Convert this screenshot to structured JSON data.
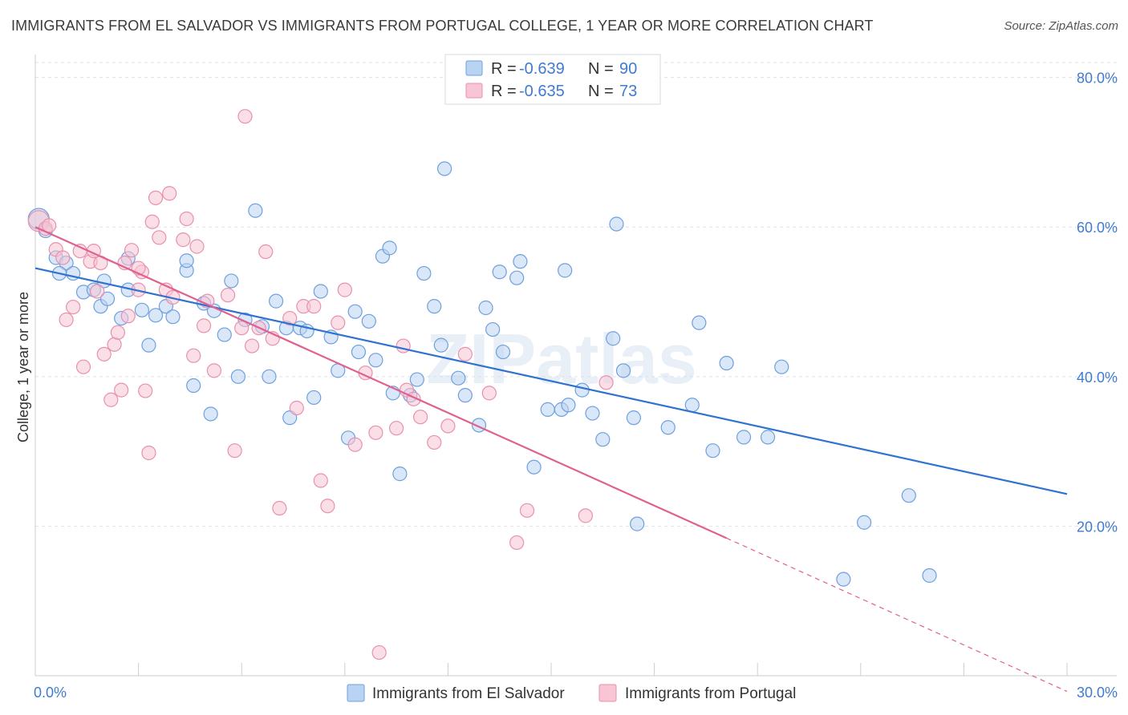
{
  "title": "IMMIGRANTS FROM EL SALVADOR VS IMMIGRANTS FROM PORTUGAL COLLEGE, 1 YEAR OR MORE CORRELATION CHART",
  "source": "Source: ZipAtlas.com",
  "watermark": "ZIPatlas",
  "colors": {
    "blue_fill": "#b9d3f3",
    "blue_stroke": "#6fa0dd",
    "blue_line": "#2f72d0",
    "pink_fill": "#f8c5d4",
    "pink_stroke": "#e890ae",
    "pink_line": "#e0608f",
    "accent_text": "#3f7bd0",
    "grid": "#dde3ea"
  },
  "legend": {
    "r_label": "R =",
    "n_label": "N =",
    "rows": [
      {
        "series": "Immigrants from El Salvador",
        "r": "-0.639",
        "n": "90"
      },
      {
        "series": "Immigrants from Portugal",
        "r": "-0.635",
        "n": "73"
      }
    ]
  },
  "chart_data": {
    "type": "scatter",
    "title": "IMMIGRANTS FROM EL SALVADOR VS IMMIGRANTS FROM PORTUGAL COLLEGE, 1 YEAR OR MORE CORRELATION CHART",
    "xlabel": "",
    "ylabel": "College, 1 year or more",
    "xlim": [
      0,
      30
    ],
    "ylim": [
      0,
      82
    ],
    "x_tick_labels": [
      "0.0%",
      "30.0%"
    ],
    "y_ticks": [
      20,
      40,
      60,
      80
    ],
    "y_tick_labels": [
      "20.0%",
      "40.0%",
      "60.0%",
      "80.0%"
    ],
    "grid": true,
    "legend_position": "top-center",
    "series": [
      {
        "name": "Immigrants from El Salvador",
        "color": "#b9d3f3",
        "trend": {
          "x0": 0,
          "y0": 54.5,
          "x1": 30,
          "y1": 24.3
        },
        "points": [
          [
            0.1,
            61.1
          ],
          [
            0.3,
            59.5
          ],
          [
            0.6,
            55.9
          ],
          [
            0.9,
            55.2
          ],
          [
            0.7,
            53.8
          ],
          [
            1.1,
            53.8
          ],
          [
            1.4,
            51.3
          ],
          [
            1.7,
            51.6
          ],
          [
            2.0,
            52.8
          ],
          [
            1.9,
            49.4
          ],
          [
            2.1,
            50.4
          ],
          [
            2.5,
            47.8
          ],
          [
            2.7,
            51.6
          ],
          [
            2.7,
            55.8
          ],
          [
            3.1,
            48.9
          ],
          [
            3.3,
            44.2
          ],
          [
            3.5,
            48.2
          ],
          [
            3.8,
            49.4
          ],
          [
            4.0,
            48.0
          ],
          [
            4.4,
            54.2
          ],
          [
            4.4,
            55.5
          ],
          [
            4.6,
            38.8
          ],
          [
            4.9,
            49.8
          ],
          [
            5.1,
            35.0
          ],
          [
            5.2,
            48.8
          ],
          [
            5.5,
            45.6
          ],
          [
            5.7,
            52.8
          ],
          [
            5.9,
            40.0
          ],
          [
            6.1,
            47.6
          ],
          [
            6.4,
            62.2
          ],
          [
            6.6,
            46.7
          ],
          [
            6.8,
            40.0
          ],
          [
            7.0,
            50.1
          ],
          [
            7.3,
            46.5
          ],
          [
            7.4,
            34.5
          ],
          [
            7.7,
            46.5
          ],
          [
            7.9,
            46.1
          ],
          [
            8.1,
            37.2
          ],
          [
            8.3,
            51.4
          ],
          [
            8.6,
            45.3
          ],
          [
            8.8,
            40.8
          ],
          [
            9.1,
            31.8
          ],
          [
            9.3,
            48.7
          ],
          [
            9.4,
            43.3
          ],
          [
            9.7,
            47.4
          ],
          [
            9.9,
            42.2
          ],
          [
            10.1,
            56.1
          ],
          [
            10.3,
            57.2
          ],
          [
            10.4,
            37.8
          ],
          [
            10.6,
            27.0
          ],
          [
            10.9,
            37.5
          ],
          [
            11.1,
            39.6
          ],
          [
            11.3,
            53.8
          ],
          [
            11.6,
            49.4
          ],
          [
            11.8,
            44.2
          ],
          [
            11.9,
            67.8
          ],
          [
            12.3,
            39.8
          ],
          [
            12.5,
            37.5
          ],
          [
            12.9,
            33.5
          ],
          [
            13.1,
            49.2
          ],
          [
            13.3,
            46.3
          ],
          [
            13.5,
            54.0
          ],
          [
            13.6,
            43.3
          ],
          [
            14.0,
            53.2
          ],
          [
            14.1,
            55.4
          ],
          [
            14.5,
            27.9
          ],
          [
            14.9,
            35.6
          ],
          [
            15.3,
            35.6
          ],
          [
            15.5,
            36.2
          ],
          [
            15.4,
            54.2
          ],
          [
            15.9,
            38.2
          ],
          [
            16.2,
            35.1
          ],
          [
            16.5,
            31.6
          ],
          [
            16.8,
            45.1
          ],
          [
            16.9,
            60.4
          ],
          [
            17.1,
            40.8
          ],
          [
            17.4,
            34.5
          ],
          [
            17.5,
            20.3
          ],
          [
            18.4,
            33.2
          ],
          [
            19.1,
            36.2
          ],
          [
            19.3,
            47.2
          ],
          [
            19.7,
            30.1
          ],
          [
            20.1,
            41.8
          ],
          [
            20.6,
            31.9
          ],
          [
            21.3,
            31.9
          ],
          [
            21.7,
            41.3
          ],
          [
            23.5,
            12.9
          ],
          [
            24.1,
            20.5
          ],
          [
            25.4,
            24.1
          ],
          [
            26.0,
            13.4
          ]
        ]
      },
      {
        "name": "Immigrants from Portugal",
        "color": "#f8c5d4",
        "trend": {
          "x0": 0,
          "y0": 60.0,
          "x1": 20.1,
          "y1": 18.4,
          "dashed_to": {
            "x": 30,
            "y": -2.1
          }
        },
        "points": [
          [
            0.1,
            60.8
          ],
          [
            0.3,
            59.8
          ],
          [
            0.4,
            60.2
          ],
          [
            0.6,
            57.0
          ],
          [
            0.8,
            55.9
          ],
          [
            0.9,
            47.6
          ],
          [
            1.1,
            49.3
          ],
          [
            1.3,
            56.8
          ],
          [
            1.4,
            41.3
          ],
          [
            1.6,
            55.4
          ],
          [
            1.7,
            56.8
          ],
          [
            1.8,
            51.4
          ],
          [
            1.9,
            55.2
          ],
          [
            2.0,
            43.0
          ],
          [
            2.2,
            36.9
          ],
          [
            2.3,
            44.3
          ],
          [
            2.4,
            45.9
          ],
          [
            2.6,
            55.2
          ],
          [
            2.7,
            48.1
          ],
          [
            2.8,
            56.9
          ],
          [
            3.0,
            51.6
          ],
          [
            3.1,
            54.0
          ],
          [
            3.2,
            38.1
          ],
          [
            3.3,
            29.8
          ],
          [
            3.4,
            60.7
          ],
          [
            3.5,
            63.9
          ],
          [
            3.6,
            58.6
          ],
          [
            3.8,
            51.6
          ],
          [
            3.9,
            64.5
          ],
          [
            4.0,
            50.6
          ],
          [
            4.3,
            58.3
          ],
          [
            4.4,
            61.1
          ],
          [
            4.6,
            42.8
          ],
          [
            4.7,
            57.4
          ],
          [
            4.9,
            46.8
          ],
          [
            5.2,
            40.8
          ],
          [
            5.6,
            50.9
          ],
          [
            5.8,
            30.1
          ],
          [
            6.0,
            46.5
          ],
          [
            6.1,
            74.8
          ],
          [
            6.3,
            44.1
          ],
          [
            6.5,
            46.5
          ],
          [
            6.7,
            56.7
          ],
          [
            6.9,
            45.1
          ],
          [
            7.1,
            22.4
          ],
          [
            7.4,
            47.8
          ],
          [
            7.6,
            35.8
          ],
          [
            7.8,
            49.4
          ],
          [
            8.1,
            49.4
          ],
          [
            8.3,
            26.1
          ],
          [
            8.5,
            22.7
          ],
          [
            8.8,
            47.2
          ],
          [
            9.0,
            51.6
          ],
          [
            9.3,
            30.9
          ],
          [
            9.6,
            40.5
          ],
          [
            9.9,
            32.5
          ],
          [
            10.5,
            33.1
          ],
          [
            10.7,
            44.1
          ],
          [
            10.8,
            38.2
          ],
          [
            11.0,
            37.0
          ],
          [
            11.2,
            34.6
          ],
          [
            11.6,
            31.2
          ],
          [
            12.0,
            33.4
          ],
          [
            12.5,
            43.0
          ],
          [
            13.2,
            37.8
          ],
          [
            14.0,
            17.8
          ],
          [
            14.3,
            22.1
          ],
          [
            16.0,
            21.4
          ],
          [
            16.6,
            39.2
          ],
          [
            10.0,
            3.1
          ],
          [
            3.0,
            54.5
          ],
          [
            2.5,
            38.2
          ],
          [
            5.0,
            50.1
          ]
        ]
      }
    ]
  },
  "bottom_legend": [
    {
      "label": "Immigrants from El Salvador",
      "color": "#b9d3f3"
    },
    {
      "label": "Immigrants from Portugal",
      "color": "#f8c5d4"
    }
  ]
}
